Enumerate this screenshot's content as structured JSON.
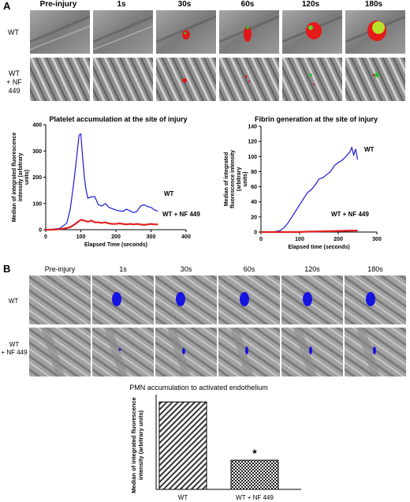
{
  "panel_a": {
    "letter": "A",
    "time_labels": [
      "Pre-injury",
      "1s",
      "30s",
      "60s",
      "120s",
      "180s"
    ],
    "row_labels": [
      [
        "WT"
      ],
      [
        "WT",
        "+ NF 449"
      ]
    ]
  },
  "panel_b": {
    "letter": "B",
    "time_labels": [
      "Pre-injury",
      "1s",
      "30s",
      "60s",
      "120s",
      "180s"
    ],
    "row_labels": [
      [
        "WT"
      ],
      [
        "WT",
        "+ NF 449"
      ]
    ]
  },
  "colors": {
    "wt_line": "#1a1ad6",
    "nf_line": "#e02020",
    "fibrin_green": "#4fd23a",
    "pmn_blue": "#1414e0"
  },
  "chart_data": [
    {
      "type": "line",
      "title": "Platelet accumulation at the site of injury",
      "xlabel": "Elapsed Time (seconds)",
      "ylabel": "Median of integrated fluorescence intensity (arbitrary units)",
      "xlim": [
        0,
        400
      ],
      "ylim": [
        0,
        400
      ],
      "xticks": [
        0,
        100,
        200,
        300,
        400
      ],
      "yticks": [
        0,
        100,
        200,
        300,
        400
      ],
      "series": [
        {
          "name": "WT",
          "x": [
            0,
            20,
            40,
            60,
            70,
            80,
            90,
            95,
            100,
            105,
            110,
            115,
            120,
            130,
            140,
            150,
            160,
            170,
            180,
            190,
            200,
            210,
            220,
            230,
            240,
            250,
            260,
            270,
            280,
            290,
            300,
            310,
            320
          ],
          "y": [
            0,
            2,
            5,
            25,
            80,
            180,
            300,
            360,
            365,
            280,
            200,
            150,
            120,
            125,
            125,
            95,
            90,
            100,
            85,
            80,
            75,
            72,
            70,
            78,
            72,
            65,
            70,
            90,
            95,
            88,
            85,
            75,
            70
          ]
        },
        {
          "name": "WT + NF 449",
          "x": [
            0,
            20,
            40,
            60,
            70,
            80,
            90,
            100,
            110,
            120,
            130,
            140,
            150,
            160,
            170,
            180,
            190,
            200,
            210,
            220,
            230,
            240,
            250,
            260,
            270,
            280,
            290,
            300,
            310,
            320
          ],
          "y": [
            0,
            0,
            2,
            6,
            10,
            18,
            28,
            38,
            35,
            30,
            35,
            28,
            28,
            26,
            28,
            24,
            22,
            22,
            24,
            22,
            20,
            22,
            20,
            22,
            20,
            18,
            20,
            22,
            20,
            20
          ]
        }
      ]
    },
    {
      "type": "line",
      "title": "Fibrin generation at the site of injury",
      "xlabel": "Elapsed time (seconds)",
      "ylabel": "Median of integrated fluorescence intensity (arbitrary units)",
      "xlim": [
        0,
        300
      ],
      "ylim": [
        0,
        140
      ],
      "xticks": [
        0,
        100,
        200,
        300
      ],
      "yticks": [
        0,
        20,
        40,
        60,
        80,
        100,
        120,
        140
      ],
      "series": [
        {
          "name": "WT",
          "x": [
            0,
            30,
            50,
            60,
            70,
            80,
            90,
            100,
            110,
            120,
            130,
            140,
            150,
            160,
            170,
            180,
            190,
            200,
            210,
            220,
            230,
            235,
            240,
            245,
            250
          ],
          "y": [
            0,
            0,
            2,
            6,
            12,
            20,
            28,
            36,
            44,
            52,
            56,
            62,
            70,
            72,
            76,
            80,
            88,
            92,
            95,
            100,
            106,
            112,
            102,
            110,
            96
          ]
        },
        {
          "name": "WT + NF 449",
          "x": [
            0,
            30,
            60,
            90,
            120,
            150,
            180,
            210,
            240,
            250
          ],
          "y": [
            0,
            0,
            0,
            0,
            0.5,
            0.8,
            1.2,
            1.6,
            2,
            2
          ]
        }
      ]
    },
    {
      "type": "bar",
      "title": "PMN accumulation to activated endothelium",
      "categories": [
        "WT",
        "WT + NF 449"
      ],
      "values": [
        120,
        40
      ],
      "ylabel": "Median of integrated fluorescence intensity (arbitrary units)",
      "ylim": [
        0,
        130
      ],
      "annotations": [
        "*"
      ]
    }
  ]
}
